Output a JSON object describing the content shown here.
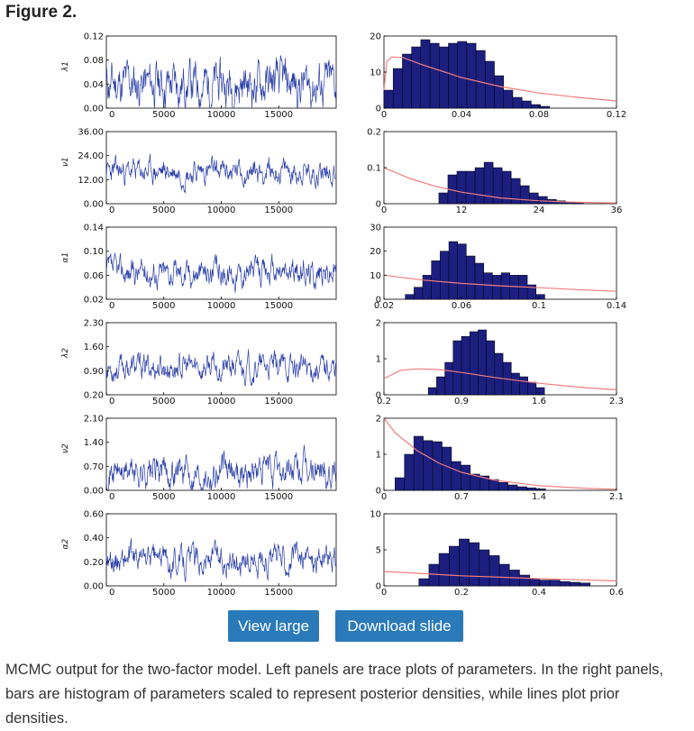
{
  "figure_title": "Figure 2.",
  "buttons": {
    "view": "View large",
    "download": "Download slide"
  },
  "caption": "MCMC output for the two-factor model. Left panels are trace plots of parameters. In the right panels, bars are histogram of parameters scaled to represent posterior densities, while lines plot prior densities.",
  "colors": {
    "trace": "#2b3fa8",
    "bar": "#1c1f80",
    "prior": "#f07d7d",
    "button": "#2a7ab9"
  },
  "chart_data": [
    {
      "type": "line",
      "param": "λ1",
      "trace": {
        "xlim": [
          0,
          20000
        ],
        "xticks": [
          "0",
          "5000",
          "10000",
          "15000"
        ],
        "xtick_values": [
          0,
          5000,
          10000,
          15000
        ],
        "ylim": [
          0,
          0.12
        ],
        "yticks": [
          "0.00",
          "0.04",
          "0.08",
          "0.12"
        ],
        "ytick_values": [
          0,
          0.04,
          0.08,
          0.12
        ],
        "mean": 0.04,
        "spread": 0.02,
        "seed": 11
      },
      "hist": {
        "xlim": [
          0,
          0.12
        ],
        "xticks": [
          "0",
          "0.04",
          "0.08",
          "0.12"
        ],
        "xtick_values": [
          0,
          0.04,
          0.08,
          0.12
        ],
        "ylim": [
          0,
          20
        ],
        "yticks": [
          "0",
          "10",
          "20"
        ],
        "ytick_values": [
          0,
          10,
          20
        ],
        "bin_start": 0,
        "bin_width": 0.00475,
        "densities": [
          5,
          11,
          15,
          17,
          19,
          18,
          17,
          18,
          18.5,
          18,
          16,
          13,
          9,
          5,
          3,
          2,
          1,
          0.5
        ],
        "prior": [
          [
            0,
            5
          ],
          [
            0.0015,
            13
          ],
          [
            0.004,
            14.2
          ],
          [
            0.01,
            14
          ],
          [
            0.02,
            12
          ],
          [
            0.04,
            8.5
          ],
          [
            0.06,
            6
          ],
          [
            0.08,
            4.2
          ],
          [
            0.1,
            3
          ],
          [
            0.12,
            2
          ]
        ]
      }
    },
    {
      "type": "line",
      "param": "ν1",
      "trace": {
        "xlim": [
          0,
          20000
        ],
        "xticks": [
          "0",
          "5000",
          "10000",
          "15000"
        ],
        "xtick_values": [
          0,
          5000,
          10000,
          15000
        ],
        "ylim": [
          0,
          36
        ],
        "yticks": [
          "0.00",
          "12.00",
          "24.00",
          "36.00"
        ],
        "ytick_values": [
          0,
          12,
          24,
          36
        ],
        "mean": 16,
        "spread": 3.2,
        "seed": 23
      },
      "hist": {
        "xlim": [
          0,
          36
        ],
        "xticks": [
          "0",
          "12",
          "24",
          "36"
        ],
        "xtick_values": [
          0,
          12,
          24,
          36
        ],
        "ylim": [
          0,
          0.2
        ],
        "yticks": [
          "0",
          "0.1",
          "0.2"
        ],
        "ytick_values": [
          0,
          0.1,
          0.2
        ],
        "bin_start": 8.5,
        "bin_width": 1.4,
        "densities": [
          0.03,
          0.08,
          0.09,
          0.09,
          0.1,
          0.115,
          0.1,
          0.09,
          0.07,
          0.05,
          0.03,
          0.02,
          0.012,
          0.008,
          0.005,
          0.003
        ],
        "prior": [
          [
            0,
            0.1
          ],
          [
            4,
            0.07
          ],
          [
            8,
            0.048
          ],
          [
            12,
            0.032
          ],
          [
            18,
            0.016
          ],
          [
            24,
            0.008
          ],
          [
            30,
            0.004
          ],
          [
            36,
            0.002
          ]
        ]
      }
    },
    {
      "type": "line",
      "param": "α1",
      "trace": {
        "xlim": [
          0,
          20000
        ],
        "xticks": [
          "0",
          "5000",
          "10000",
          "15000"
        ],
        "xtick_values": [
          0,
          5000,
          10000,
          15000
        ],
        "ylim": [
          0.02,
          0.14
        ],
        "yticks": [
          "0.02",
          "0.06",
          "0.10",
          "0.14"
        ],
        "ytick_values": [
          0.02,
          0.06,
          0.1,
          0.14
        ],
        "mean": 0.065,
        "spread": 0.012,
        "seed": 37
      },
      "hist": {
        "xlim": [
          0.02,
          0.14
        ],
        "xticks": [
          "0.02",
          "0.06",
          "0.1",
          "0.14"
        ],
        "xtick_values": [
          0.02,
          0.06,
          0.1,
          0.14
        ],
        "ylim": [
          0,
          30
        ],
        "yticks": [
          "0",
          "10",
          "20",
          "30"
        ],
        "ytick_values": [
          0,
          10,
          20,
          30
        ],
        "bin_start": 0.031,
        "bin_width": 0.0045,
        "densities": [
          2,
          5,
          10,
          16,
          20,
          24,
          23,
          18,
          15,
          11,
          10,
          11,
          10,
          10,
          6,
          2
        ],
        "prior": [
          [
            0.02,
            10
          ],
          [
            0.04,
            8
          ],
          [
            0.06,
            6.6
          ],
          [
            0.08,
            5.6
          ],
          [
            0.1,
            4.8
          ],
          [
            0.12,
            4
          ],
          [
            0.14,
            3.3
          ]
        ]
      }
    },
    {
      "type": "line",
      "param": "λ2",
      "trace": {
        "xlim": [
          0,
          20000
        ],
        "xticks": [
          "0",
          "5000",
          "10000",
          "15000"
        ],
        "xtick_values": [
          0,
          5000,
          10000,
          15000
        ],
        "ylim": [
          0.2,
          2.3
        ],
        "yticks": [
          "0.20",
          "0.90",
          "1.60",
          "2.30"
        ],
        "ytick_values": [
          0.2,
          0.9,
          1.6,
          2.3
        ],
        "mean": 1.0,
        "spread": 0.2,
        "seed": 53
      },
      "hist": {
        "xlim": [
          0.2,
          2.3
        ],
        "xticks": [
          "0.2",
          "0.9",
          "1.6",
          "2.3"
        ],
        "xtick_values": [
          0.2,
          0.9,
          1.6,
          2.3
        ],
        "ylim": [
          0,
          2
        ],
        "yticks": [
          "0",
          "1",
          "2"
        ],
        "ytick_values": [
          0,
          1,
          2
        ],
        "bin_start": 0.6,
        "bin_width": 0.075,
        "densities": [
          0.2,
          0.5,
          0.9,
          1.5,
          1.62,
          1.75,
          1.8,
          1.5,
          1.15,
          0.9,
          0.6,
          0.5,
          0.35,
          0.2
        ],
        "prior": [
          [
            0.2,
            0.45
          ],
          [
            0.35,
            0.68
          ],
          [
            0.5,
            0.72
          ],
          [
            0.7,
            0.7
          ],
          [
            0.9,
            0.62
          ],
          [
            1.2,
            0.48
          ],
          [
            1.6,
            0.32
          ],
          [
            2,
            0.2
          ],
          [
            2.3,
            0.14
          ]
        ]
      }
    },
    {
      "type": "line",
      "param": "ν2",
      "trace": {
        "xlim": [
          0,
          20000
        ],
        "xticks": [
          "0",
          "5000",
          "10000",
          "15000"
        ],
        "xtick_values": [
          0,
          5000,
          10000,
          15000
        ],
        "ylim": [
          0,
          2.1
        ],
        "yticks": [
          "0.00",
          "0.70",
          "1.40",
          "2.10"
        ],
        "ytick_values": [
          0,
          0.7,
          1.4,
          2.1
        ],
        "mean": 0.55,
        "spread": 0.24,
        "seed": 71
      },
      "hist": {
        "xlim": [
          0,
          2.1
        ],
        "xticks": [
          "0",
          "0.7",
          "1.4",
          "2.1"
        ],
        "xtick_values": [
          0,
          0.7,
          1.4,
          2.1
        ],
        "ylim": [
          0,
          2
        ],
        "yticks": [
          "0",
          "1",
          "2"
        ],
        "ytick_values": [
          0,
          1,
          2
        ],
        "bin_start": 0.1,
        "bin_width": 0.085,
        "densities": [
          0.35,
          1.0,
          1.5,
          1.38,
          1.35,
          1.2,
          0.8,
          0.7,
          0.45,
          0.4,
          0.3,
          0.22,
          0.15,
          0.1,
          0.07,
          0.04
        ],
        "prior": [
          [
            0,
            2
          ],
          [
            0.1,
            1.6
          ],
          [
            0.3,
            1.1
          ],
          [
            0.5,
            0.75
          ],
          [
            0.7,
            0.5
          ],
          [
            1,
            0.28
          ],
          [
            1.4,
            0.13
          ],
          [
            1.8,
            0.06
          ],
          [
            2.1,
            0.03
          ]
        ]
      }
    },
    {
      "type": "line",
      "param": "α2",
      "trace": {
        "xlim": [
          0,
          20000
        ],
        "xticks": [
          "0",
          "5000",
          "10000",
          "15000"
        ],
        "xtick_values": [
          0,
          5000,
          10000,
          15000
        ],
        "ylim": [
          0,
          0.6
        ],
        "yticks": [
          "0.00",
          "0.20",
          "0.40",
          "0.60"
        ],
        "ytick_values": [
          0,
          0.2,
          0.4,
          0.6
        ],
        "mean": 0.22,
        "spread": 0.06,
        "seed": 89
      },
      "hist": {
        "xlim": [
          0,
          0.6
        ],
        "xticks": [
          "0",
          "0.2",
          "0.4",
          "0.6"
        ],
        "xtick_values": [
          0,
          0.2,
          0.4,
          0.6
        ],
        "ylim": [
          0,
          10
        ],
        "yticks": [
          "0",
          "5",
          "10"
        ],
        "ytick_values": [
          0,
          5,
          10
        ],
        "bin_start": 0.09,
        "bin_width": 0.026,
        "densities": [
          1,
          3,
          4.5,
          5.5,
          6.5,
          6,
          5,
          4.2,
          3,
          2.2,
          1.5,
          1,
          0.8,
          0.8,
          0.6,
          0.5,
          0.4
        ],
        "prior": [
          [
            0,
            2
          ],
          [
            0.1,
            1.7
          ],
          [
            0.2,
            1.4
          ],
          [
            0.3,
            1.2
          ],
          [
            0.4,
            1
          ],
          [
            0.5,
            0.85
          ],
          [
            0.6,
            0.7
          ]
        ]
      }
    }
  ]
}
